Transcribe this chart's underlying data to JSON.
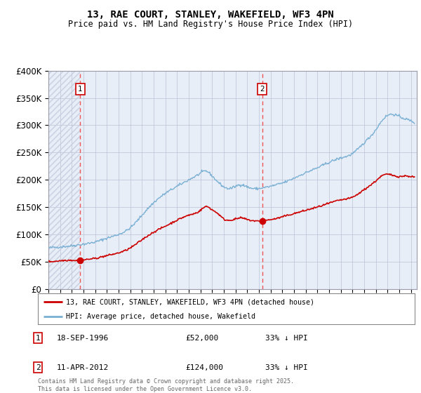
{
  "title_line1": "13, RAE COURT, STANLEY, WAKEFIELD, WF3 4PN",
  "title_line2": "Price paid vs. HM Land Registry's House Price Index (HPI)",
  "xlim_start": 1994.0,
  "xlim_end": 2025.5,
  "ylim_min": 0,
  "ylim_max": 400000,
  "yticks": [
    0,
    50000,
    100000,
    150000,
    200000,
    250000,
    300000,
    350000,
    400000
  ],
  "ytick_labels": [
    "£0",
    "£50K",
    "£100K",
    "£150K",
    "£200K",
    "£250K",
    "£300K",
    "£350K",
    "£400K"
  ],
  "sale1_date": 1996.72,
  "sale1_price": 52000,
  "sale2_date": 2012.28,
  "sale2_price": 124000,
  "sale1_label": "1",
  "sale2_label": "2",
  "legend_property": "13, RAE COURT, STANLEY, WAKEFIELD, WF3 4PN (detached house)",
  "legend_hpi": "HPI: Average price, detached house, Wakefield",
  "footnote": "Contains HM Land Registry data © Crown copyright and database right 2025.\nThis data is licensed under the Open Government Licence v3.0.",
  "property_color": "#cc0000",
  "hpi_color": "#7ab0d4",
  "dashed_color": "#ee5555",
  "background_color": "#e8eef8",
  "grid_color": "#b0b8cc",
  "hatch_color": "#c8d0e0"
}
